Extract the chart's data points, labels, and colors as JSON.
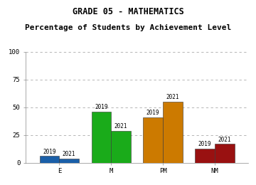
{
  "title1": "GRADE 05 - MATHEMATICS",
  "title2": "Percentage of Students by Achievement Level",
  "categories": [
    "E",
    "M",
    "PM",
    "NM"
  ],
  "values_2019": [
    6,
    46,
    41,
    13
  ],
  "values_2021": [
    4,
    29,
    55,
    17
  ],
  "colors_2019": [
    "#1a5fa8",
    "#1aab1a",
    "#cc7a00",
    "#991111"
  ],
  "colors_2021": [
    "#1a5fa8",
    "#1aab1a",
    "#cc7a00",
    "#991111"
  ],
  "ylim": [
    0,
    100
  ],
  "yticks": [
    0,
    25,
    50,
    75,
    100
  ],
  "bar_width": 0.38,
  "bg_color": "#ffffff",
  "plot_bg": "#ffffff",
  "year_fontsize": 5.5,
  "title_fontsize": 8.5,
  "axis_label_fontsize": 6.5
}
